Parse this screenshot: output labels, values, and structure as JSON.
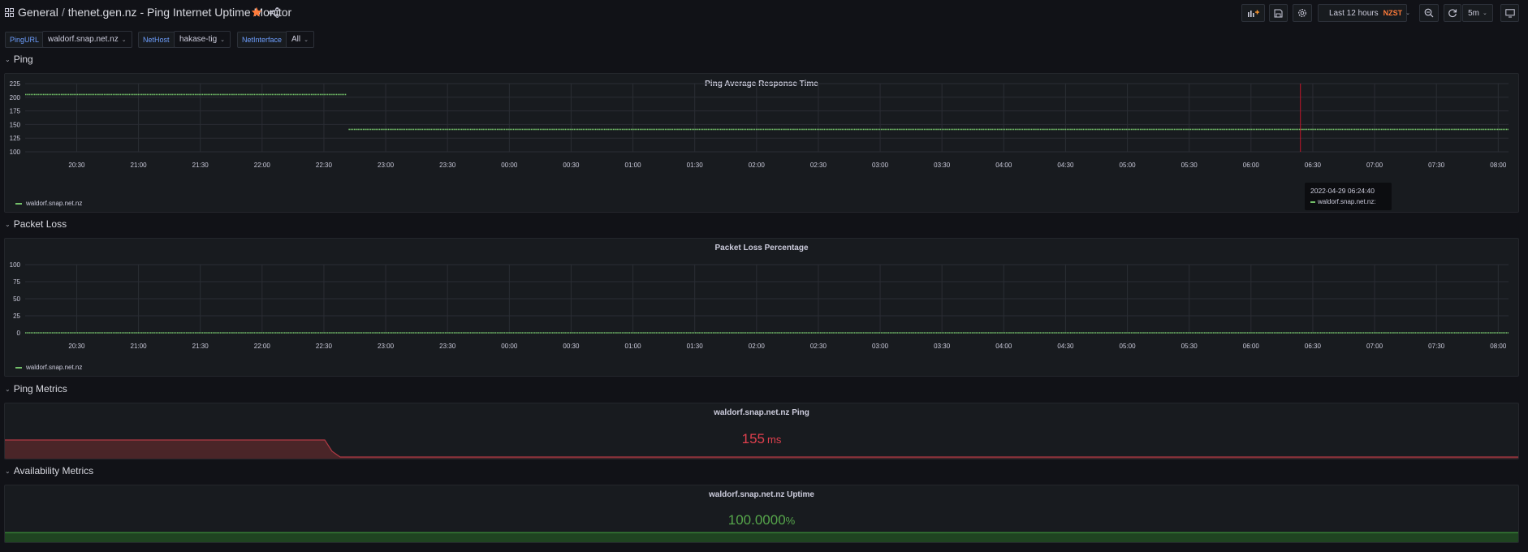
{
  "header": {
    "folder": "General",
    "separator": "/",
    "title": "thenet.gen.nz - Ping Internet Uptime Monitor",
    "time_range": "Last 12 hours",
    "timezone": "NZST",
    "refresh": "5m"
  },
  "variables": [
    {
      "label": "PingURL",
      "value": "waldorf.snap.net.nz"
    },
    {
      "label": "NetHost",
      "value": "hakase-tig"
    },
    {
      "label": "NetInterface",
      "value": "All"
    }
  ],
  "rows": {
    "ping": "Ping",
    "packet_loss": "Packet Loss",
    "ping_metrics": "Ping Metrics",
    "availability": "Availability Metrics"
  },
  "x_ticks": [
    "20:30",
    "21:00",
    "21:30",
    "22:00",
    "22:30",
    "23:00",
    "23:30",
    "00:00",
    "00:30",
    "01:00",
    "01:30",
    "02:00",
    "02:30",
    "03:00",
    "03:30",
    "04:00",
    "04:30",
    "05:00",
    "05:30",
    "06:00",
    "06:30",
    "07:00",
    "07:30",
    "08:00"
  ],
  "ping_panel": {
    "title": "Ping Average Response Time",
    "legend": "waldorf.snap.net.nz"
  },
  "loss_panel": {
    "title": "Packet Loss Percentage",
    "legend": "waldorf.snap.net.nz"
  },
  "tooltip": {
    "time": "2022-04-29 06:24:40",
    "series": "waldorf.snap.net.nz:"
  },
  "ping_stat": {
    "title": "waldorf.snap.net.nz Ping",
    "value": "155",
    "unit": "ms"
  },
  "uptime_stat": {
    "title": "waldorf.snap.net.nz Uptime",
    "value": "100.0000",
    "unit": "%"
  },
  "colors": {
    "series_green": "#73bf69",
    "red": "#f2495c",
    "stat_green": "#56a64b",
    "accent_orange": "#ff7b3a"
  },
  "icons": [
    "apps-icon",
    "star-icon",
    "share-icon",
    "add-panel-icon",
    "save-icon",
    "settings-icon",
    "clock-icon",
    "zoom-out-icon",
    "refresh-icon",
    "tv-mode-icon"
  ],
  "chart_data": [
    {
      "type": "line",
      "title": "Ping Average Response Time",
      "ylim": [
        100,
        225
      ],
      "y_ticks": [
        100,
        125,
        150,
        175,
        200,
        225
      ],
      "x_ticks": [
        "20:30",
        "21:00",
        "21:30",
        "22:00",
        "22:30",
        "23:00",
        "23:30",
        "00:00",
        "00:30",
        "01:00",
        "01:30",
        "02:00",
        "02:30",
        "03:00",
        "03:30",
        "04:00",
        "04:30",
        "05:00",
        "05:30",
        "06:00",
        "06:30",
        "07:00",
        "07:30",
        "08:00"
      ],
      "grid": true,
      "legend": "bottom-left",
      "series": [
        {
          "name": "waldorf.snap.net.nz",
          "x": [
            "20:05",
            "22:41",
            "22:42",
            "08:05"
          ],
          "values": [
            205,
            205,
            141,
            141
          ]
        }
      ]
    },
    {
      "type": "line",
      "title": "Packet Loss Percentage",
      "ylim": [
        0,
        100
      ],
      "y_ticks": [
        0,
        25,
        50,
        75,
        100
      ],
      "x_ticks": [
        "20:30",
        "21:00",
        "21:30",
        "22:00",
        "22:30",
        "23:00",
        "23:30",
        "00:00",
        "00:30",
        "01:00",
        "01:30",
        "02:00",
        "02:30",
        "03:00",
        "03:30",
        "04:00",
        "04:30",
        "05:00",
        "05:30",
        "06:00",
        "06:30",
        "07:00",
        "07:30",
        "08:00"
      ],
      "grid": true,
      "legend": "bottom-left",
      "series": [
        {
          "name": "waldorf.snap.net.nz",
          "x": [
            "20:05",
            "08:05"
          ],
          "values": [
            0,
            0
          ]
        }
      ]
    }
  ]
}
